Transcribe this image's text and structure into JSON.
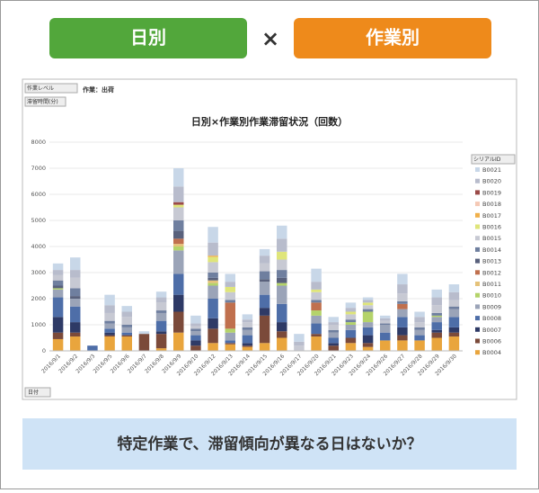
{
  "header": {
    "left": "日別",
    "cross": "×",
    "right": "作業別"
  },
  "footer": "特定作業で、滞留傾向が異なる日はないか？",
  "ui": {
    "filter1": "作業レベル",
    "filter2": "滞留時間(分)",
    "filter_label": "作業：出荷",
    "axis_button": "日付",
    "legend_button": "シリアルID"
  },
  "chart_data": {
    "type": "stacked_bar",
    "title": "日別×作業別作業滞留状況（回数）",
    "categories": [
      "2016/9/1",
      "2016/9/2",
      "2016/9/3",
      "2016/9/5",
      "2016/9/6",
      "2016/9/7",
      "2016/9/8",
      "2016/9/9",
      "2016/9/10",
      "2016/9/12",
      "2016/9/13",
      "2016/9/14",
      "2016/9/15",
      "2016/9/16",
      "2016/9/17",
      "2016/9/20",
      "2016/9/21",
      "2016/9/23",
      "2016/9/24",
      "2016/9/26",
      "2016/9/27",
      "2016/9/28",
      "2016/9/29",
      "2016/9/30"
    ],
    "ylim": [
      0,
      8000
    ],
    "yticks": [
      0,
      1000,
      2000,
      3000,
      4000,
      5000,
      6000,
      7000,
      8000
    ],
    "series": [
      {
        "name": "B0004",
        "color": "#e9a53d",
        "values": [
          450,
          550,
          0,
          550,
          550,
          0,
          100,
          700,
          0,
          300,
          250,
          150,
          300,
          500,
          0,
          550,
          0,
          300,
          150,
          400,
          400,
          400,
          500,
          550
        ]
      },
      {
        "name": "B0006",
        "color": "#7b4a3a",
        "values": [
          250,
          150,
          0,
          50,
          50,
          650,
          550,
          800,
          200,
          550,
          50,
          50,
          1050,
          250,
          0,
          100,
          200,
          200,
          150,
          0,
          200,
          0,
          200,
          150
        ]
      },
      {
        "name": "B0007",
        "color": "#2e3a66",
        "values": [
          600,
          400,
          0,
          100,
          0,
          0,
          100,
          650,
          200,
          400,
          0,
          100,
          300,
          350,
          0,
          0,
          100,
          0,
          300,
          0,
          300,
          0,
          100,
          200
        ]
      },
      {
        "name": "B0008",
        "color": "#4e6ea8",
        "values": [
          750,
          600,
          200,
          150,
          100,
          0,
          400,
          800,
          200,
          750,
          100,
          300,
          500,
          700,
          0,
          400,
          200,
          300,
          300,
          300,
          400,
          200,
          300,
          400
        ]
      },
      {
        "name": "B0009",
        "color": "#9ba4b8",
        "values": [
          300,
          300,
          0,
          200,
          200,
          0,
          300,
          900,
          150,
          500,
          300,
          200,
          500,
          700,
          0,
          300,
          200,
          200,
          200,
          300,
          300,
          200,
          200,
          300
        ]
      },
      {
        "name": "B0010",
        "color": "#b4d36a",
        "values": [
          50,
          0,
          0,
          0,
          0,
          0,
          0,
          150,
          0,
          100,
          150,
          0,
          0,
          100,
          0,
          200,
          0,
          100,
          400,
          0,
          0,
          0,
          50,
          0
        ]
      },
      {
        "name": "B0011",
        "color": "#e5c27a",
        "values": [
          0,
          0,
          0,
          0,
          0,
          0,
          0,
          100,
          0,
          100,
          0,
          0,
          0,
          0,
          0,
          0,
          0,
          0,
          0,
          0,
          0,
          0,
          0,
          0
        ]
      },
      {
        "name": "B0012",
        "color": "#c0704e",
        "values": [
          0,
          0,
          0,
          0,
          0,
          0,
          0,
          200,
          0,
          0,
          1000,
          0,
          0,
          0,
          0,
          300,
          0,
          0,
          0,
          0,
          200,
          0,
          0,
          0
        ]
      },
      {
        "name": "B0013",
        "color": "#59617c",
        "values": [
          100,
          100,
          0,
          0,
          0,
          0,
          0,
          300,
          0,
          100,
          0,
          0,
          100,
          200,
          0,
          0,
          0,
          0,
          0,
          0,
          0,
          0,
          0,
          0
        ]
      },
      {
        "name": "B0014",
        "color": "#6f7f9f",
        "values": [
          200,
          300,
          0,
          100,
          100,
          0,
          100,
          400,
          100,
          200,
          100,
          100,
          300,
          300,
          0,
          100,
          100,
          100,
          100,
          50,
          100,
          100,
          100,
          100
        ]
      },
      {
        "name": "B0015",
        "color": "#c7c9d3",
        "values": [
          200,
          400,
          0,
          300,
          300,
          0,
          300,
          500,
          100,
          400,
          300,
          200,
          300,
          400,
          200,
          300,
          200,
          200,
          150,
          100,
          300,
          200,
          300,
          250
        ]
      },
      {
        "name": "B0016",
        "color": "#dfe57a",
        "values": [
          0,
          0,
          0,
          0,
          0,
          0,
          0,
          100,
          0,
          200,
          200,
          0,
          0,
          300,
          0,
          100,
          0,
          100,
          100,
          0,
          0,
          0,
          0,
          0
        ]
      },
      {
        "name": "B0017",
        "color": "#f0b04a",
        "values": [
          0,
          0,
          0,
          0,
          0,
          0,
          0,
          0,
          0,
          50,
          0,
          0,
          0,
          0,
          0,
          0,
          0,
          0,
          0,
          0,
          0,
          0,
          0,
          0
        ]
      },
      {
        "name": "B0018",
        "color": "#f5c9b5",
        "values": [
          0,
          0,
          0,
          0,
          0,
          0,
          0,
          0,
          0,
          0,
          0,
          0,
          0,
          0,
          0,
          0,
          0,
          0,
          0,
          0,
          0,
          0,
          0,
          0
        ]
      },
      {
        "name": "B0019",
        "color": "#9b4a48",
        "values": [
          0,
          0,
          0,
          0,
          0,
          0,
          0,
          100,
          0,
          0,
          0,
          0,
          0,
          0,
          0,
          0,
          0,
          0,
          0,
          0,
          0,
          0,
          0,
          0
        ]
      },
      {
        "name": "B0020",
        "color": "#b8bccc",
        "values": [
          200,
          300,
          0,
          300,
          200,
          0,
          200,
          600,
          100,
          500,
          200,
          100,
          300,
          500,
          150,
          300,
          100,
          150,
          100,
          100,
          350,
          200,
          300,
          300
        ]
      },
      {
        "name": "B0021",
        "color": "#c8d7e8",
        "values": [
          250,
          480,
          0,
          400,
          220,
          100,
          220,
          700,
          300,
          600,
          300,
          200,
          250,
          500,
          300,
          500,
          200,
          200,
          100,
          100,
          400,
          200,
          300,
          300
        ]
      }
    ]
  }
}
